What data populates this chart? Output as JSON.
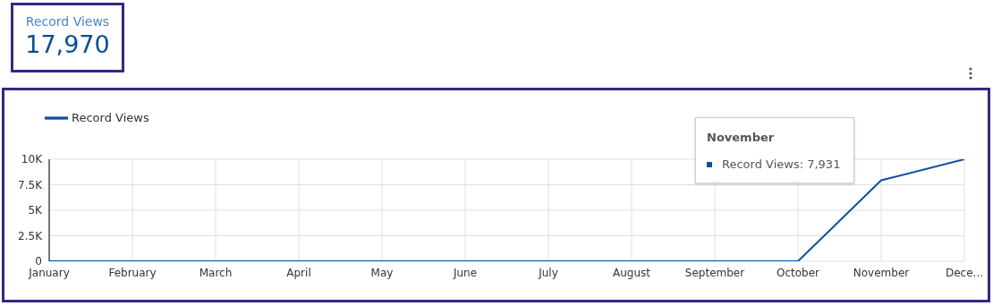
{
  "chart_data": {
    "type": "line",
    "categories": [
      "January",
      "February",
      "March",
      "April",
      "May",
      "June",
      "July",
      "August",
      "September",
      "October",
      "November",
      "Dece..."
    ],
    "series": [
      {
        "name": "Record Views",
        "color": "#0b4f9c",
        "values": [
          0,
          0,
          0,
          0,
          0,
          0,
          0,
          0,
          0,
          0,
          7931,
          10000
        ]
      }
    ],
    "ylim": [
      0,
      10000
    ],
    "yticks": [
      0,
      {
        "value": 2500,
        "label": "2.5K"
      },
      {
        "value": 5000,
        "label": "5K"
      },
      {
        "value": 7500,
        "label": "7.5K"
      },
      {
        "value": 10000,
        "label": "10K"
      }
    ],
    "grid": true,
    "legend": "top left",
    "marker": "none",
    "line_style": "solid",
    "annotations": [
      "Record Views",
      "17,970",
      "November",
      "Record Views: 7,931"
    ]
  }
}
